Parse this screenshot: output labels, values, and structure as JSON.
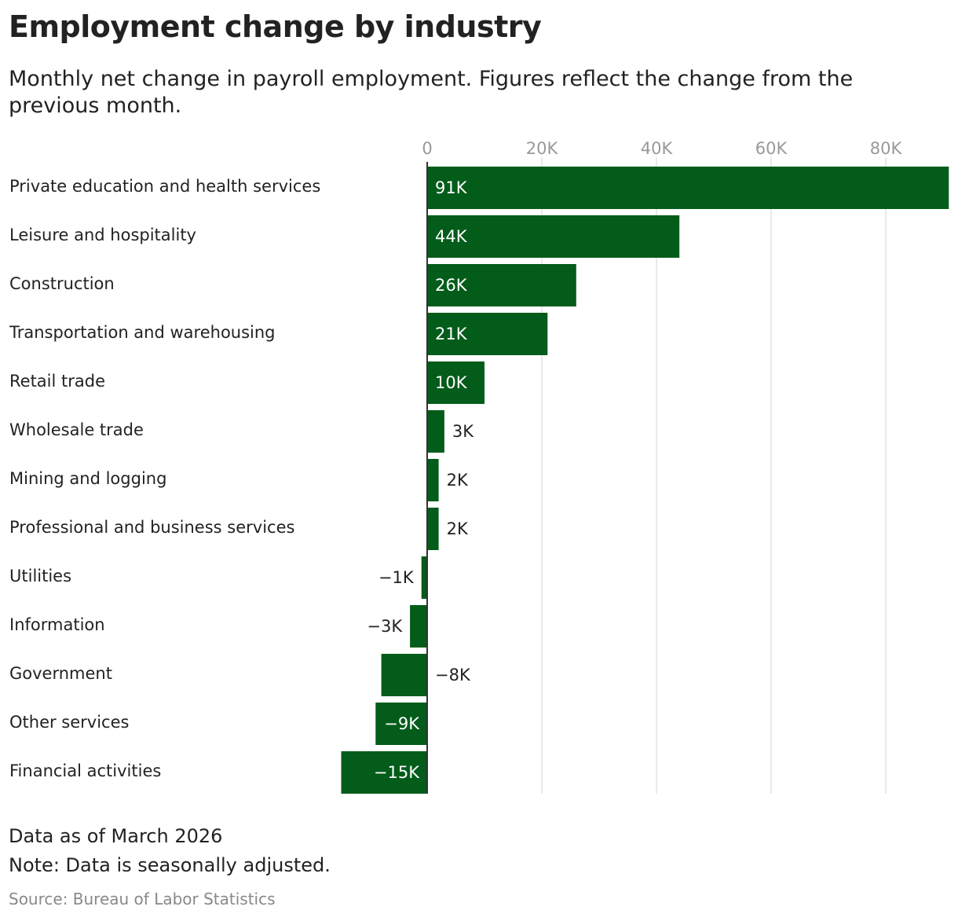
{
  "title": "Employment change by industry",
  "subtitle": "Monthly net change in payroll employment. Figures reflect the change from the previous month.",
  "footer": {
    "data_as_of": "Data as of March 2026",
    "note": "Note: Data is seasonally adjusted.",
    "source": "Source: Bureau of Labor Statistics"
  },
  "chart_data": {
    "type": "bar",
    "orientation": "horizontal",
    "categories": [
      "Private education and health services",
      "Leisure and hospitality",
      "Construction",
      "Transportation and warehousing",
      "Retail trade",
      "Wholesale trade",
      "Mining and logging",
      "Professional and business services",
      "Utilities",
      "Information",
      "Government",
      "Other services",
      "Financial activities"
    ],
    "values": [
      91,
      44,
      26,
      21,
      10,
      3,
      2,
      2,
      -1,
      -3,
      -8,
      -9,
      -15
    ],
    "data_labels": [
      "91K",
      "44K",
      "26K",
      "21K",
      "10K",
      "3K",
      "2K",
      "2K",
      "−1K",
      "−3K",
      "−8K",
      "−9K",
      "−15K"
    ],
    "unit": "thousands of jobs",
    "xlim": [
      -15,
      91
    ],
    "xticks": [
      0,
      20,
      40,
      60,
      80
    ],
    "xtick_labels": [
      "0",
      "20K",
      "40K",
      "60K",
      "80K"
    ],
    "xaxis_position": "top",
    "grid": true,
    "color": "#035c1a",
    "gridline_color": "#e2e2e2",
    "zero_line_color": "#333333"
  }
}
